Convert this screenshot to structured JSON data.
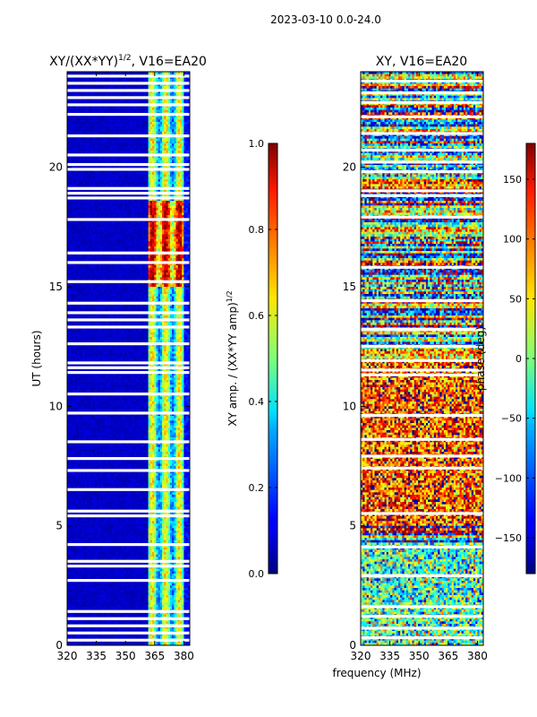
{
  "figure": {
    "suptitle": "2023-03-10 0.0-24.0",
    "xlabel": "frequency (MHz)"
  },
  "chart_data": [
    {
      "type": "heatmap",
      "title_text": "XY/(XX*YY)",
      "title_sup": "1/2",
      "title_suffix": ", V16=EA20",
      "xlabel": "",
      "ylabel": "UT (hours)",
      "xlim": [
        320,
        383
      ],
      "ylim": [
        0,
        24
      ],
      "xticks": [
        320,
        335,
        350,
        365,
        380
      ],
      "yticks": [
        0,
        5,
        10,
        15,
        20
      ],
      "colormap": "jet",
      "colorbar": {
        "label_text": "XY amp. / (XX*YY amp)",
        "label_sup": "1/2",
        "range": [
          0.0,
          1.0
        ],
        "ticks": [
          "0.0",
          "0.2",
          "0.4",
          "0.6",
          "0.8",
          "1.0"
        ]
      },
      "flagged_hours": [
        0.2,
        0.5,
        0.8,
        1.1,
        1.4,
        2.7,
        3.3,
        3.5,
        4.2,
        5.4,
        5.6,
        6.5,
        7.3,
        7.8,
        8.5,
        9.7,
        10.5,
        11.4,
        11.6,
        11.8,
        12.6,
        13.3,
        13.6,
        13.9,
        14.3,
        15.2,
        16.0,
        16.4,
        17.8,
        18.7,
        18.9,
        19.1,
        19.9,
        20.1,
        20.5,
        21.3,
        22.2,
        22.6,
        22.9,
        23.2,
        23.5,
        23.8
      ],
      "description_bands": "Low amplitude (~0.05) below 362 MHz; bright vertical stripes of high amplitude (0.4–0.9) between 362 and 380 MHz with strongest values at 15–18.5 UT"
    },
    {
      "type": "heatmap",
      "title_text": "XY, V16=EA20",
      "xlabel": "",
      "ylabel": "",
      "xlim": [
        320,
        383
      ],
      "ylim": [
        0,
        24
      ],
      "xticks": [
        320,
        335,
        350,
        365,
        380
      ],
      "yticks": [
        0,
        5,
        10,
        15,
        20
      ],
      "colormap": "jet",
      "colorbar": {
        "label_text": "phase (deg)",
        "range": [
          -180,
          180
        ],
        "ticks": [
          "−150",
          "−100",
          "−50",
          "0",
          "50",
          "100",
          "150"
        ]
      },
      "flagged_hours": [
        0.3,
        0.7,
        1.2,
        1.6,
        2.9,
        4.1,
        5.5,
        7.4,
        7.9,
        8.6,
        9.6,
        11.3,
        11.5,
        11.9,
        12.5,
        13.2,
        14.4,
        15.8,
        17.9,
        18.8,
        19.0,
        19.8,
        20.2,
        20.7,
        21.4,
        22.1,
        22.7,
        23.1,
        23.6
      ],
      "description_bands": "Phase scattered across full range; predominantly positive (red/orange) between 5 and 12 UT, mixed green/cyan below 4 UT and above 12 UT"
    }
  ]
}
